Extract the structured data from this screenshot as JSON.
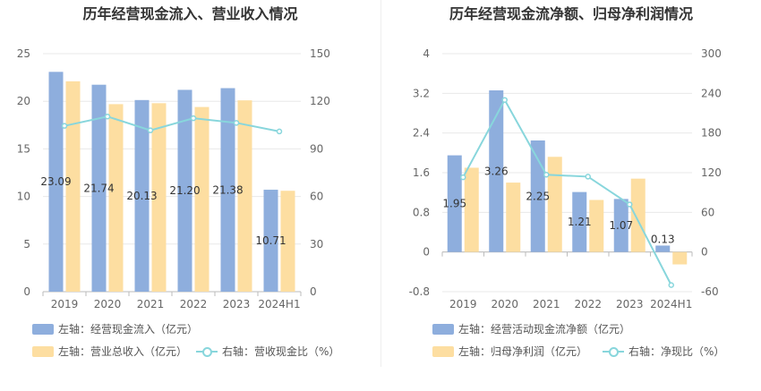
{
  "colors": {
    "bar1": "#8eaedd",
    "bar2": "#fddea1",
    "line": "#88d6dc",
    "grid": "#e8e8e8",
    "axis": "#bbbbbb"
  },
  "chart_data": [
    {
      "type": "bar",
      "title": "历年经营现金流入、营业收入情况",
      "categories": [
        "2019",
        "2020",
        "2021",
        "2022",
        "2023",
        "2024H1"
      ],
      "y_left": {
        "ticks": [
          "0",
          "5",
          "10",
          "15",
          "20",
          "25"
        ],
        "min": 0,
        "max": 25
      },
      "y_right": {
        "ticks": [
          "0",
          "30",
          "60",
          "90",
          "120",
          "150"
        ],
        "min": 0,
        "max": 150
      },
      "series": [
        {
          "name": "左轴：经营现金流入（亿元）",
          "axis": "left",
          "type": "bar",
          "values": [
            23.09,
            21.74,
            20.13,
            21.2,
            21.38,
            10.71
          ],
          "labels": [
            "23.09",
            "21.74",
            "20.13",
            "21.20",
            "21.38",
            "10.71"
          ]
        },
        {
          "name": "左轴：营业总收入（亿元）",
          "axis": "left",
          "type": "bar",
          "values": [
            22.1,
            19.7,
            19.8,
            19.4,
            20.1,
            10.6
          ]
        },
        {
          "name": "右轴：营收现金比（%）",
          "axis": "right",
          "type": "line",
          "values": [
            104.5,
            110.4,
            101.7,
            109.3,
            106.4,
            101.0
          ]
        }
      ],
      "legend_rows": [
        [
          "左轴：经营现金流入（亿元）"
        ],
        [
          "左轴：营业总收入（亿元）",
          "右轴：营收现金比（%）"
        ]
      ]
    },
    {
      "type": "bar",
      "title": "历年经营现金流净额、归母净利润情况",
      "categories": [
        "2019",
        "2020",
        "2021",
        "2022",
        "2023",
        "2024H1"
      ],
      "y_left": {
        "ticks": [
          "-0.8",
          "0",
          "0.8",
          "1.6",
          "2.4",
          "3.2",
          "4"
        ],
        "min": -0.8,
        "max": 4
      },
      "y_right": {
        "ticks": [
          "-60",
          "0",
          "60",
          "120",
          "180",
          "240",
          "300"
        ],
        "min": -60,
        "max": 300
      },
      "series": [
        {
          "name": "左轴：经营活动现金流净额（亿元）",
          "axis": "left",
          "type": "bar",
          "values": [
            1.95,
            3.26,
            2.25,
            1.21,
            1.07,
            0.13
          ],
          "labels": [
            "1.95",
            "3.26",
            "2.25",
            "1.21",
            "1.07",
            "0.13"
          ]
        },
        {
          "name": "左轴：归母净利润（亿元）",
          "axis": "left",
          "type": "bar",
          "values": [
            1.7,
            1.4,
            1.92,
            1.05,
            1.48,
            -0.25
          ]
        },
        {
          "name": "右轴：净现比（%）",
          "axis": "right",
          "type": "line",
          "values": [
            113,
            230,
            117,
            114,
            72,
            -50
          ]
        }
      ],
      "legend_rows": [
        [
          "左轴：经营活动现金流净额（亿元）"
        ],
        [
          "左轴：归母净利润（亿元）",
          "右轴：净现比（%）"
        ]
      ]
    }
  ]
}
